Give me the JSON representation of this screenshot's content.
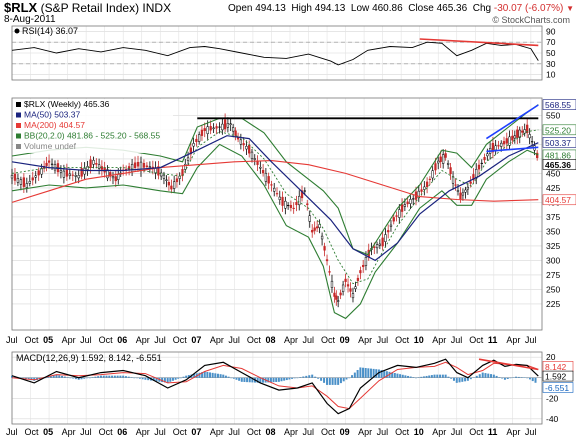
{
  "header": {
    "symbol": "$RLX",
    "name": "(S&P Retail Index)",
    "exchange": "INDX",
    "date": "8-Aug-2011",
    "open_label": "Open",
    "open": "494.13",
    "high_label": "High",
    "high": "494.13",
    "low_label": "Low",
    "low": "460.86",
    "close_label": "Close",
    "close": "465.36",
    "chg_label": "Chg",
    "chg": "-30.07 (-6.07%)",
    "watermark": "© StockCharts.com"
  },
  "chart_data": [
    {
      "type": "line",
      "title": "RSI(14) 36.07",
      "ylim": [
        0,
        100
      ],
      "yticks": [
        10,
        30,
        50,
        70,
        90
      ],
      "last_value": 36.07,
      "grid": true,
      "x_range": [
        2004.5,
        2011.65
      ],
      "overbought": 70,
      "oversold": 30,
      "trendline": {
        "x": [
          2010.0,
          2011.6
        ],
        "y": [
          76,
          64
        ]
      },
      "series_points": [
        [
          2004.5,
          55
        ],
        [
          2004.8,
          60
        ],
        [
          2005.1,
          50
        ],
        [
          2005.4,
          58
        ],
        [
          2005.7,
          52
        ],
        [
          2006.0,
          60
        ],
        [
          2006.3,
          55
        ],
        [
          2006.6,
          45
        ],
        [
          2006.9,
          60
        ],
        [
          2007.1,
          62
        ],
        [
          2007.3,
          58
        ],
        [
          2007.6,
          50
        ],
        [
          2007.9,
          42
        ],
        [
          2008.2,
          40
        ],
        [
          2008.5,
          48
        ],
        [
          2008.8,
          35
        ],
        [
          2008.9,
          28
        ],
        [
          2009.1,
          38
        ],
        [
          2009.3,
          55
        ],
        [
          2009.6,
          62
        ],
        [
          2009.9,
          60
        ],
        [
          2010.1,
          70
        ],
        [
          2010.3,
          68
        ],
        [
          2010.5,
          45
        ],
        [
          2010.7,
          55
        ],
        [
          2010.9,
          68
        ],
        [
          2011.1,
          64
        ],
        [
          2011.3,
          66
        ],
        [
          2011.5,
          58
        ],
        [
          2011.6,
          36
        ]
      ]
    },
    {
      "type": "candlestick",
      "title": "$RLX (Weekly) 465.36",
      "ylim": [
        180,
        580
      ],
      "yticks": [
        225,
        250,
        275,
        300,
        325,
        350,
        375,
        400,
        425,
        450,
        475,
        500,
        525,
        550
      ],
      "x_range": [
        2004.5,
        2011.65
      ],
      "xticks": [
        {
          "x": 2004.5,
          "label": "Jul"
        },
        {
          "x": 2004.75,
          "label": "Oct"
        },
        {
          "x": 2005.0,
          "label": "05"
        },
        {
          "x": 2005.25,
          "label": "Apr"
        },
        {
          "x": 2005.5,
          "label": "Jul"
        },
        {
          "x": 2005.75,
          "label": "Oct"
        },
        {
          "x": 2006.0,
          "label": "06"
        },
        {
          "x": 2006.25,
          "label": "Apr"
        },
        {
          "x": 2006.5,
          "label": "Jul"
        },
        {
          "x": 2006.75,
          "label": "Oct"
        },
        {
          "x": 2007.0,
          "label": "07"
        },
        {
          "x": 2007.25,
          "label": "Apr"
        },
        {
          "x": 2007.5,
          "label": "Jul"
        },
        {
          "x": 2007.75,
          "label": "Oct"
        },
        {
          "x": 2008.0,
          "label": "08"
        },
        {
          "x": 2008.25,
          "label": "Apr"
        },
        {
          "x": 2008.5,
          "label": "Jul"
        },
        {
          "x": 2008.75,
          "label": "Oct"
        },
        {
          "x": 2009.0,
          "label": "09"
        },
        {
          "x": 2009.25,
          "label": "Apr"
        },
        {
          "x": 2009.5,
          "label": "Jul"
        },
        {
          "x": 2009.75,
          "label": "Oct"
        },
        {
          "x": 2010.0,
          "label": "10"
        },
        {
          "x": 2010.25,
          "label": "Apr"
        },
        {
          "x": 2010.5,
          "label": "Jul"
        },
        {
          "x": 2010.75,
          "label": "Oct"
        },
        {
          "x": 2011.0,
          "label": "11"
        },
        {
          "x": 2011.25,
          "label": "Apr"
        },
        {
          "x": 2011.5,
          "label": "Jul"
        }
      ],
      "legend": [
        {
          "label": "$RLX (Weekly) 465.36",
          "color": "#000000"
        },
        {
          "label": "MA(50) 503.37",
          "color": "#1a237e"
        },
        {
          "label": "MA(200) 404.57",
          "color": "#e53935"
        },
        {
          "label": "BB(20,2.0) 481.86 - 525.20 - 568.55",
          "color": "#2e7d32"
        },
        {
          "label": "Volume undef",
          "color": "#888888"
        }
      ],
      "price_tags": [
        {
          "value": 568.55,
          "text": "568.55",
          "color": "#1a237e"
        },
        {
          "value": 525.2,
          "text": "525.20",
          "color": "#2e7d32"
        },
        {
          "value": 503.37,
          "text": "503.37",
          "color": "#1a237e"
        },
        {
          "value": 481.86,
          "text": "481.86",
          "color": "#2e7d32"
        },
        {
          "value": 465.36,
          "text": "465.36",
          "color": "#000000",
          "bold": true
        },
        {
          "value": 404.57,
          "text": "404.57",
          "color": "#e53935"
        }
      ],
      "resistance": {
        "x": [
          2007.0,
          2011.6
        ],
        "y": [
          545,
          545
        ]
      },
      "channel_upper": {
        "x": [
          2010.9,
          2011.6
        ],
        "y": [
          510,
          568
        ]
      },
      "channel_lower": {
        "x": [
          2010.9,
          2011.6
        ],
        "y": [
          488,
          495
        ]
      },
      "close_points": [
        [
          2004.5,
          445
        ],
        [
          2004.7,
          430
        ],
        [
          2004.9,
          455
        ],
        [
          2005.0,
          470
        ],
        [
          2005.2,
          450
        ],
        [
          2005.4,
          445
        ],
        [
          2005.6,
          470
        ],
        [
          2005.75,
          455
        ],
        [
          2005.9,
          440
        ],
        [
          2006.0,
          455
        ],
        [
          2006.2,
          465
        ],
        [
          2006.4,
          460
        ],
        [
          2006.55,
          445
        ],
        [
          2006.65,
          425
        ],
        [
          2006.8,
          450
        ],
        [
          2006.95,
          500
        ],
        [
          2007.1,
          525
        ],
        [
          2007.3,
          530
        ],
        [
          2007.45,
          535
        ],
        [
          2007.55,
          510
        ],
        [
          2007.7,
          490
        ],
        [
          2007.85,
          460
        ],
        [
          2008.0,
          430
        ],
        [
          2008.15,
          400
        ],
        [
          2008.3,
          390
        ],
        [
          2008.45,
          420
        ],
        [
          2008.55,
          350
        ],
        [
          2008.65,
          360
        ],
        [
          2008.75,
          300
        ],
        [
          2008.85,
          240
        ],
        [
          2008.9,
          230
        ],
        [
          2009.0,
          265
        ],
        [
          2009.1,
          240
        ],
        [
          2009.2,
          280
        ],
        [
          2009.35,
          320
        ],
        [
          2009.5,
          330
        ],
        [
          2009.65,
          370
        ],
        [
          2009.8,
          395
        ],
        [
          2009.95,
          410
        ],
        [
          2010.1,
          430
        ],
        [
          2010.25,
          470
        ],
        [
          2010.35,
          480
        ],
        [
          2010.45,
          440
        ],
        [
          2010.55,
          410
        ],
        [
          2010.65,
          425
        ],
        [
          2010.8,
          460
        ],
        [
          2010.95,
          490
        ],
        [
          2011.1,
          500
        ],
        [
          2011.25,
          510
        ],
        [
          2011.35,
          520
        ],
        [
          2011.45,
          525
        ],
        [
          2011.55,
          495
        ],
        [
          2011.62,
          465
        ]
      ],
      "ma50_points": [
        [
          2004.5,
          470
        ],
        [
          2005.0,
          460
        ],
        [
          2005.5,
          455
        ],
        [
          2006.0,
          455
        ],
        [
          2006.5,
          460
        ],
        [
          2007.0,
          490
        ],
        [
          2007.4,
          515
        ],
        [
          2007.7,
          510
        ],
        [
          2008.0,
          470
        ],
        [
          2008.4,
          420
        ],
        [
          2008.8,
          370
        ],
        [
          2009.1,
          320
        ],
        [
          2009.4,
          300
        ],
        [
          2009.7,
          330
        ],
        [
          2010.0,
          380
        ],
        [
          2010.4,
          420
        ],
        [
          2010.8,
          445
        ],
        [
          2011.2,
          480
        ],
        [
          2011.6,
          503
        ]
      ],
      "ma200_points": [
        [
          2004.5,
          400
        ],
        [
          2005.0,
          420
        ],
        [
          2005.5,
          440
        ],
        [
          2006.0,
          450
        ],
        [
          2006.5,
          460
        ],
        [
          2007.0,
          465
        ],
        [
          2007.5,
          470
        ],
        [
          2008.0,
          472
        ],
        [
          2008.5,
          465
        ],
        [
          2009.0,
          450
        ],
        [
          2009.5,
          430
        ],
        [
          2010.0,
          410
        ],
        [
          2010.5,
          405
        ],
        [
          2011.0,
          402
        ],
        [
          2011.6,
          404.57
        ]
      ],
      "bb_upper_points": [
        [
          2004.5,
          480
        ],
        [
          2005.0,
          490
        ],
        [
          2005.5,
          495
        ],
        [
          2006.0,
          490
        ],
        [
          2006.5,
          480
        ],
        [
          2006.8,
          470
        ],
        [
          2007.0,
          530
        ],
        [
          2007.3,
          545
        ],
        [
          2007.6,
          545
        ],
        [
          2007.9,
          520
        ],
        [
          2008.2,
          470
        ],
        [
          2008.5,
          440
        ],
        [
          2008.7,
          420
        ],
        [
          2008.9,
          390
        ],
        [
          2009.1,
          320
        ],
        [
          2009.3,
          310
        ],
        [
          2009.5,
          350
        ],
        [
          2009.7,
          390
        ],
        [
          2010.0,
          430
        ],
        [
          2010.3,
          490
        ],
        [
          2010.5,
          485
        ],
        [
          2010.7,
          460
        ],
        [
          2010.9,
          500
        ],
        [
          2011.2,
          530
        ],
        [
          2011.45,
          555
        ],
        [
          2011.6,
          568.55
        ]
      ],
      "bb_lower_points": [
        [
          2004.5,
          420
        ],
        [
          2005.0,
          430
        ],
        [
          2005.5,
          425
        ],
        [
          2006.0,
          430
        ],
        [
          2006.5,
          420
        ],
        [
          2006.8,
          415
        ],
        [
          2007.0,
          460
        ],
        [
          2007.3,
          500
        ],
        [
          2007.6,
          480
        ],
        [
          2007.9,
          430
        ],
        [
          2008.2,
          360
        ],
        [
          2008.5,
          340
        ],
        [
          2008.7,
          290
        ],
        [
          2008.85,
          210
        ],
        [
          2009.0,
          200
        ],
        [
          2009.2,
          225
        ],
        [
          2009.4,
          280
        ],
        [
          2009.7,
          330
        ],
        [
          2010.0,
          390
        ],
        [
          2010.3,
          420
        ],
        [
          2010.5,
          395
        ],
        [
          2010.7,
          395
        ],
        [
          2010.9,
          440
        ],
        [
          2011.2,
          470
        ],
        [
          2011.45,
          490
        ],
        [
          2011.6,
          481.86
        ]
      ],
      "bb_mid_points": [
        [
          2004.5,
          450
        ],
        [
          2005.0,
          460
        ],
        [
          2005.5,
          460
        ],
        [
          2006.0,
          460
        ],
        [
          2006.5,
          450
        ],
        [
          2006.8,
          445
        ],
        [
          2007.0,
          495
        ],
        [
          2007.3,
          522
        ],
        [
          2007.6,
          512
        ],
        [
          2007.9,
          475
        ],
        [
          2008.2,
          415
        ],
        [
          2008.5,
          390
        ],
        [
          2008.7,
          355
        ],
        [
          2008.9,
          300
        ],
        [
          2009.1,
          260
        ],
        [
          2009.3,
          268
        ],
        [
          2009.5,
          315
        ],
        [
          2009.7,
          360
        ],
        [
          2010.0,
          410
        ],
        [
          2010.3,
          455
        ],
        [
          2010.5,
          440
        ],
        [
          2010.7,
          428
        ],
        [
          2010.9,
          470
        ],
        [
          2011.2,
          500
        ],
        [
          2011.45,
          522
        ],
        [
          2011.6,
          525.2
        ]
      ]
    },
    {
      "type": "line",
      "title": "MACD(12,26,9) 1.592, 8.142, -6.551",
      "ylim": [
        -45,
        25
      ],
      "yticks": [
        -40,
        -20,
        0,
        20
      ],
      "x_range": [
        2004.5,
        2011.65
      ],
      "macd_tags": [
        {
          "value": 8.142,
          "text": "8.142",
          "color": "#e53935"
        },
        {
          "value": 1.592,
          "text": "1.592",
          "color": "#000000"
        },
        {
          "value": -6.551,
          "text": "-6.551",
          "color": "#1565c0"
        }
      ],
      "trendline": {
        "x": [
          2010.8,
          2011.6
        ],
        "y": [
          18,
          8
        ]
      },
      "macd_points": [
        [
          2004.5,
          2
        ],
        [
          2004.8,
          -5
        ],
        [
          2005.1,
          6
        ],
        [
          2005.4,
          0
        ],
        [
          2005.7,
          5
        ],
        [
          2006.0,
          7
        ],
        [
          2006.3,
          2
        ],
        [
          2006.6,
          -10
        ],
        [
          2006.85,
          -2
        ],
        [
          2007.1,
          12
        ],
        [
          2007.35,
          15
        ],
        [
          2007.6,
          5
        ],
        [
          2007.85,
          -5
        ],
        [
          2008.1,
          -12
        ],
        [
          2008.35,
          -10
        ],
        [
          2008.55,
          -5
        ],
        [
          2008.75,
          -25
        ],
        [
          2008.9,
          -35
        ],
        [
          2009.05,
          -30
        ],
        [
          2009.2,
          -10
        ],
        [
          2009.45,
          5
        ],
        [
          2009.7,
          12
        ],
        [
          2009.95,
          10
        ],
        [
          2010.2,
          14
        ],
        [
          2010.35,
          18
        ],
        [
          2010.5,
          5
        ],
        [
          2010.65,
          0
        ],
        [
          2010.85,
          12
        ],
        [
          2011.0,
          17
        ],
        [
          2011.15,
          11
        ],
        [
          2011.3,
          13
        ],
        [
          2011.45,
          12
        ],
        [
          2011.6,
          1.592
        ]
      ],
      "signal_points": [
        [
          2004.5,
          0
        ],
        [
          2004.8,
          -2
        ],
        [
          2005.1,
          3
        ],
        [
          2005.4,
          2
        ],
        [
          2005.7,
          3
        ],
        [
          2006.0,
          5
        ],
        [
          2006.3,
          4
        ],
        [
          2006.6,
          -5
        ],
        [
          2006.85,
          -4
        ],
        [
          2007.1,
          6
        ],
        [
          2007.35,
          12
        ],
        [
          2007.6,
          9
        ],
        [
          2007.85,
          0
        ],
        [
          2008.1,
          -8
        ],
        [
          2008.35,
          -10
        ],
        [
          2008.55,
          -8
        ],
        [
          2008.75,
          -18
        ],
        [
          2008.9,
          -28
        ],
        [
          2009.05,
          -30
        ],
        [
          2009.2,
          -20
        ],
        [
          2009.45,
          -3
        ],
        [
          2009.7,
          8
        ],
        [
          2009.95,
          10
        ],
        [
          2010.2,
          11
        ],
        [
          2010.35,
          15
        ],
        [
          2010.5,
          10
        ],
        [
          2010.65,
          3
        ],
        [
          2010.85,
          7
        ],
        [
          2011.0,
          14
        ],
        [
          2011.15,
          13
        ],
        [
          2011.3,
          12
        ],
        [
          2011.45,
          12
        ],
        [
          2011.6,
          8.142
        ]
      ]
    }
  ]
}
